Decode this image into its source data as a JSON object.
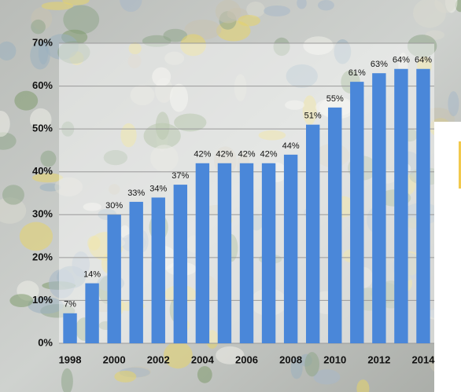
{
  "chart_data": {
    "type": "bar",
    "categories": [
      "1998",
      null,
      "2000",
      null,
      "2002",
      null,
      "2004",
      null,
      "2006",
      null,
      "2008",
      null,
      "2010",
      null,
      "2012",
      null,
      "2014"
    ],
    "values": [
      7,
      14,
      30,
      33,
      34,
      37,
      42,
      42,
      42,
      42,
      44,
      51,
      55,
      61,
      63,
      64,
      64
    ],
    "value_labels": [
      "7%",
      "14%",
      "30%",
      "33%",
      "34%",
      "37%",
      "42%",
      "42%",
      "42%",
      "42%",
      "44%",
      "51%",
      "55%",
      "61%",
      "63%",
      "64%",
      "64%"
    ],
    "color": "#4a87d9",
    "ylim": [
      0,
      70
    ],
    "yticks": [
      {
        "value": 0,
        "label": "0%"
      },
      {
        "value": 10,
        "label": "10%"
      },
      {
        "value": 20,
        "label": "20%"
      },
      {
        "value": 30,
        "label": "30%"
      },
      {
        "value": 40,
        "label": "40%"
      },
      {
        "value": 50,
        "label": "50%"
      },
      {
        "value": 60,
        "label": "60%"
      },
      {
        "value": 70,
        "label": "70%"
      }
    ],
    "grid": true
  }
}
